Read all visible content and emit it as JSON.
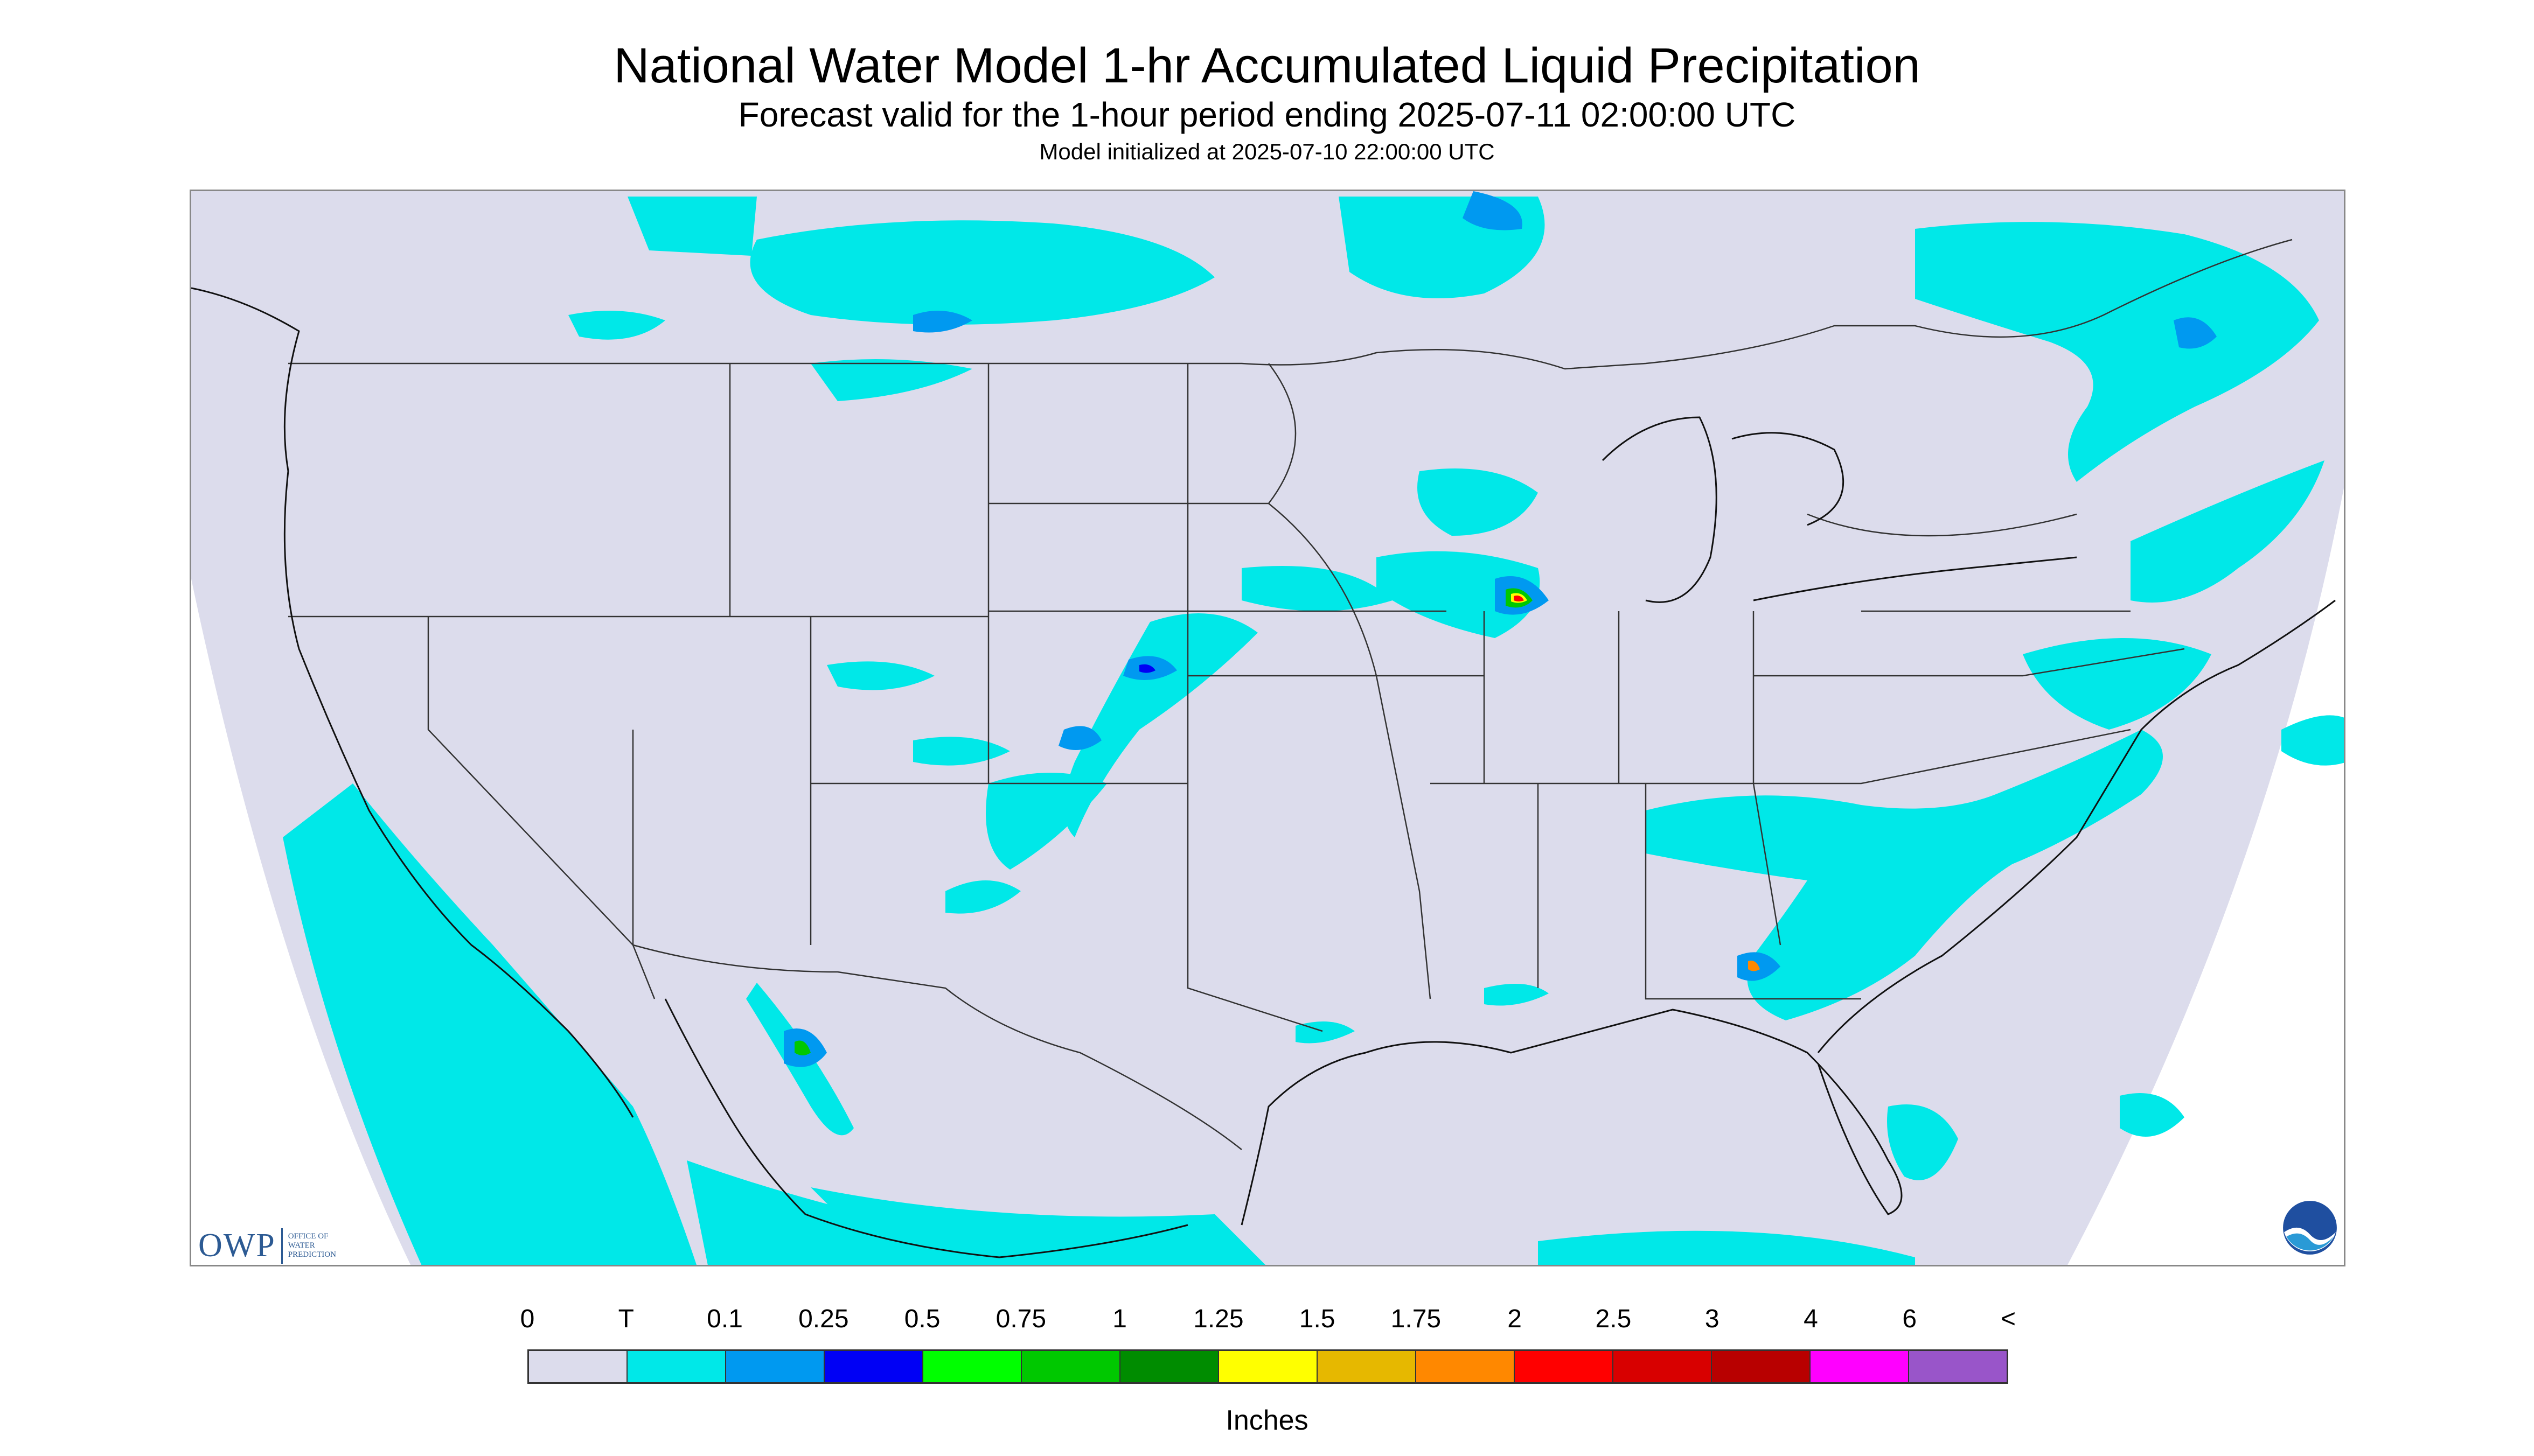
{
  "title": "National Water Model 1-hr Accumulated Liquid Precipitation",
  "subtitle": "Forecast valid for the 1-hour period ending 2025-07-11 02:00:00 UTC",
  "init_line": "Model initialized at 2025-07-10 22:00:00 UTC",
  "logo": {
    "mark": "OWP",
    "text_lines": [
      "OFFICE OF",
      "WATER",
      "PREDICTION"
    ],
    "agency_icon": "noaa-logo-icon"
  },
  "legend": {
    "unit_label": "Inches",
    "tick_labels": [
      "0",
      "T",
      "0.1",
      "0.25",
      "0.5",
      "0.75",
      "1",
      "1.25",
      "1.5",
      "1.75",
      "2",
      "2.5",
      "3",
      "4",
      "6",
      "<"
    ],
    "colors": [
      "#dcdcec",
      "#00e8e8",
      "#0099f0",
      "#0000f5",
      "#00ff00",
      "#00c800",
      "#008c00",
      "#ffff00",
      "#e6b800",
      "#ff8800",
      "#ff0000",
      "#d80000",
      "#b80000",
      "#ff00ff",
      "#9955c9"
    ]
  },
  "map": {
    "background_color": "#dcdcec",
    "outside_color": "#ffffff",
    "border_color": "#333333"
  }
}
